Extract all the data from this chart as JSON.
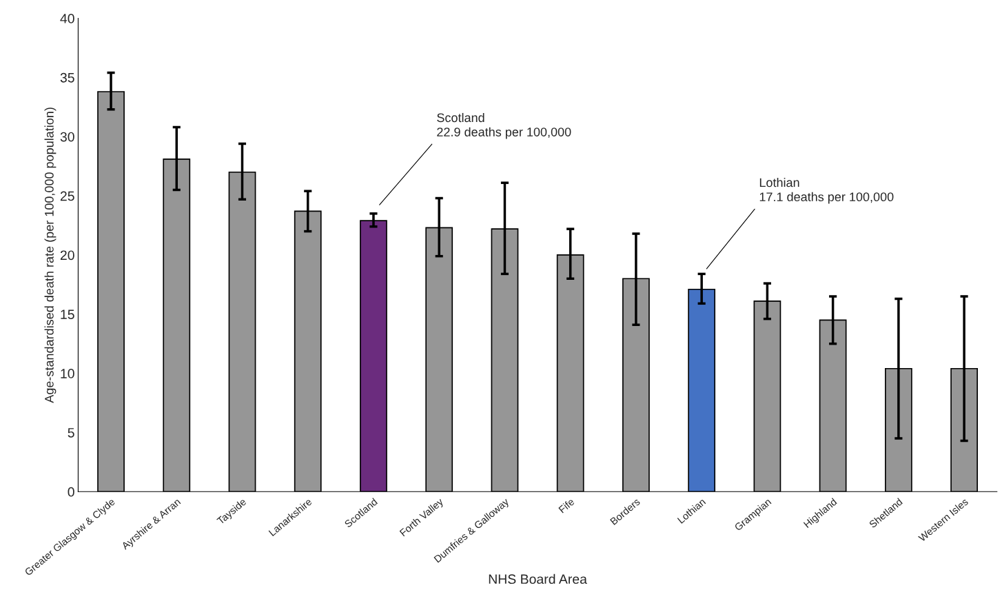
{
  "chart_data": {
    "type": "bar",
    "xlabel": "NHS Board Area",
    "ylabel": "Age-standardised death rate (per 100,000 population)",
    "categories": [
      "Greater Glasgow & Clyde",
      "Ayrshire & Arran",
      "Tayside",
      "Lanarkshire",
      "Scotland",
      "Forth Valley",
      "Dumfries & Galloway",
      "Fife",
      "Borders",
      "Lothian",
      "Grampian",
      "Highland",
      "Shetland",
      "Western Isles"
    ],
    "values": [
      33.8,
      28.1,
      27.0,
      23.7,
      22.9,
      22.3,
      22.2,
      20.0,
      18.0,
      17.1,
      16.1,
      14.5,
      10.4,
      10.4
    ],
    "errors": [
      [
        32.3,
        35.4
      ],
      [
        25.5,
        30.8
      ],
      [
        24.7,
        29.4
      ],
      [
        22.0,
        25.4
      ],
      [
        22.4,
        23.5
      ],
      [
        19.9,
        24.8
      ],
      [
        18.4,
        26.1
      ],
      [
        18.0,
        22.2
      ],
      [
        14.1,
        21.8
      ],
      [
        15.9,
        18.4
      ],
      [
        14.6,
        17.6
      ],
      [
        12.5,
        16.5
      ],
      [
        4.5,
        16.3
      ],
      [
        4.3,
        16.5
      ]
    ],
    "colors": [
      "#969696",
      "#969696",
      "#969696",
      "#969696",
      "#6b2c7e",
      "#969696",
      "#969696",
      "#969696",
      "#969696",
      "#4472c4",
      "#969696",
      "#969696",
      "#969696",
      "#969696"
    ],
    "ylim": [
      0,
      40
    ],
    "yticks": [
      0,
      5,
      10,
      15,
      20,
      25,
      30,
      35,
      40
    ],
    "grid": false,
    "annotations": [
      "Scotland\n22.9 deaths per 100,000",
      "Lothian\n17.1 deaths per 100,000"
    ]
  }
}
